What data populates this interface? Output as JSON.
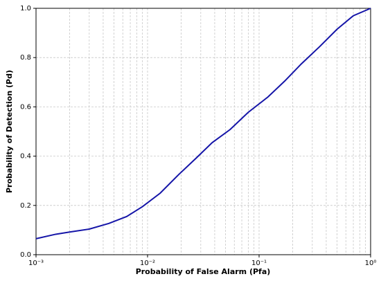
{
  "chart_data": {
    "type": "line",
    "xlabel": "Probability of False Alarm (Pfa)",
    "ylabel": "Probability of Detection (Pd)",
    "xscale": "log",
    "x": [
      0.001,
      0.0015,
      0.002,
      0.003,
      0.0045,
      0.0065,
      0.009,
      0.013,
      0.019,
      0.027,
      0.038,
      0.055,
      0.08,
      0.12,
      0.17,
      0.24,
      0.35,
      0.5,
      0.7,
      1.0
    ],
    "series": [
      {
        "color": "#1515a8",
        "values": [
          0.065,
          0.083,
          0.092,
          0.104,
          0.127,
          0.155,
          0.195,
          0.25,
          0.325,
          0.39,
          0.455,
          0.508,
          0.578,
          0.64,
          0.705,
          0.775,
          0.845,
          0.915,
          0.97,
          1.0
        ]
      }
    ],
    "xlim": [
      0.001,
      1
    ],
    "ylim": [
      0,
      1
    ],
    "xticks": [
      {
        "value": 0.001,
        "label": "10⁻³"
      },
      {
        "value": 0.01,
        "label": "10⁻²"
      },
      {
        "value": 0.1,
        "label": "10⁻¹"
      },
      {
        "value": 1,
        "label": "10⁰"
      }
    ],
    "xminorticks": [
      0.002,
      0.003,
      0.004,
      0.005,
      0.006,
      0.007,
      0.008,
      0.009,
      0.02,
      0.03,
      0.04,
      0.05,
      0.06,
      0.07,
      0.08,
      0.09,
      0.2,
      0.3,
      0.4,
      0.5,
      0.6,
      0.7,
      0.8,
      0.9
    ],
    "yticks": [
      {
        "value": 0,
        "label": "0.0"
      },
      {
        "value": 0.2,
        "label": "0.2"
      },
      {
        "value": 0.4,
        "label": "0.4"
      },
      {
        "value": 0.6,
        "label": "0.6"
      },
      {
        "value": 0.8,
        "label": "0.8"
      },
      {
        "value": 1,
        "label": "1.0"
      }
    ],
    "grid": true
  }
}
